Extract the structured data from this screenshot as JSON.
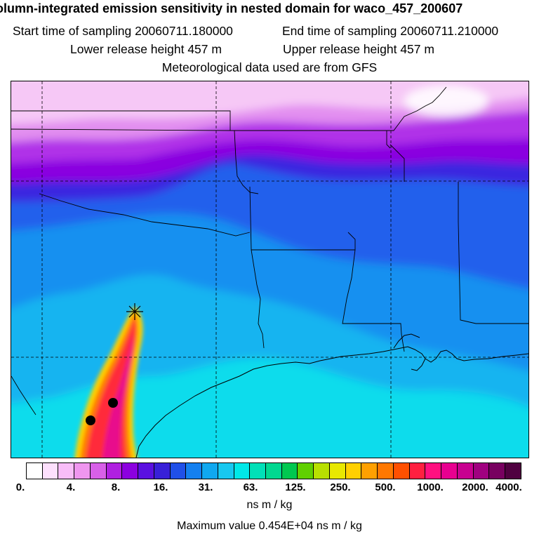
{
  "header": {
    "title": "olumn-integrated emission sensitivity in nested domain for waco_457_200607",
    "start_label": "Start time of sampling 20060711.180000",
    "end_label": "End time of sampling 20060711.210000",
    "lower_label": "Lower release height  457 m",
    "upper_label": "Upper release height  457 m",
    "met_label": "Meteorological data used are from GFS"
  },
  "legend": {
    "colors": [
      "#ffffff",
      "#fde0fd",
      "#f8bdf8",
      "#ef96ef",
      "#d860e8",
      "#b020e0",
      "#8c00e0",
      "#5a10e0",
      "#3820d8",
      "#2050e8",
      "#1480f0",
      "#10a8f0",
      "#18c8f0",
      "#00e8e8",
      "#00e0b8",
      "#00d890",
      "#00c850",
      "#60d000",
      "#b8e000",
      "#e8e800",
      "#ffd000",
      "#ffa000",
      "#ff7800",
      "#ff5000",
      "#ff2040",
      "#ff1080",
      "#e80090",
      "#c80090",
      "#a00080",
      "#780060",
      "#500040"
    ],
    "tick_labels": [
      "0.",
      "4.",
      "8.",
      "16.",
      "31.",
      "63.",
      "125.",
      "250.",
      "500.",
      "1000.",
      "2000.",
      "4000."
    ],
    "unit": "ns m / kg",
    "max_value": "Maximum value  0.454E+04 ns m / kg"
  },
  "map": {
    "receptor_marker": "cross-icon",
    "colors": {
      "light_pink": "#f6c8f6",
      "pink": "#e28ef0",
      "violet": "#b030e8",
      "purple": "#8a00e0",
      "deep_blue": "#3a28e0",
      "blue": "#2060ec",
      "mid_blue": "#1690f0",
      "cyan_blue": "#18b4f0",
      "cyan": "#10dcec",
      "plume_yellow": "#ffd000",
      "plume_orange": "#ff7800",
      "plume_red": "#ff2a3a",
      "plume_magenta": "#e8108c"
    }
  }
}
